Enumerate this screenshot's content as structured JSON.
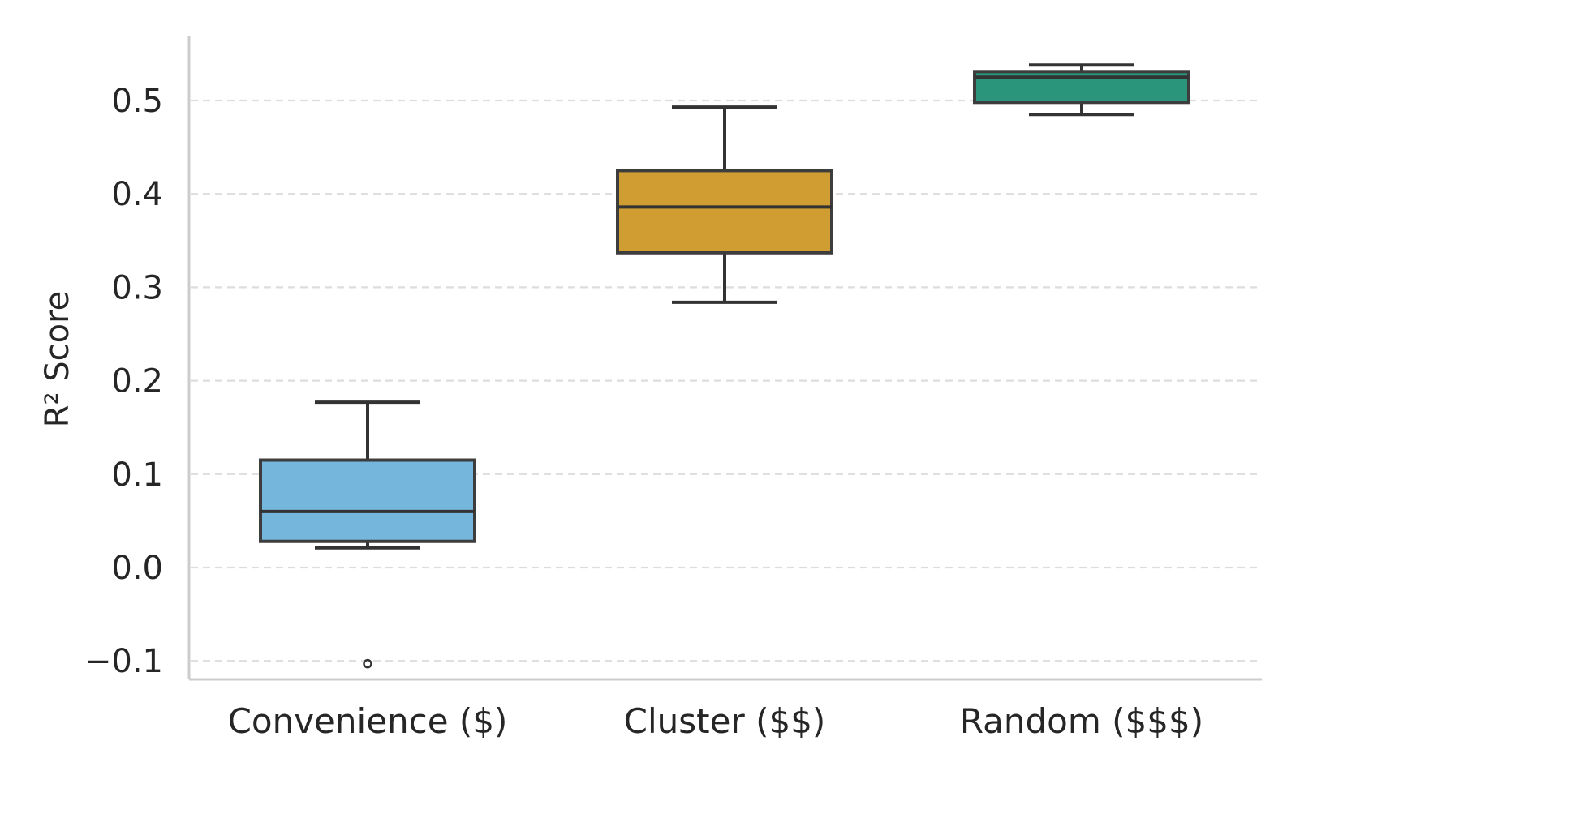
{
  "chart_data": {
    "type": "box",
    "ylabel": "R² Score",
    "ylim": [
      -0.12,
      0.58
    ],
    "yticks": [
      -0.1,
      0.0,
      0.1,
      0.2,
      0.3,
      0.4,
      0.5
    ],
    "ytick_labels": [
      "−0.1",
      "0.0",
      "0.1",
      "0.2",
      "0.3",
      "0.4",
      "0.5"
    ],
    "grid": "y-dashed",
    "categories": [
      "Convenience ($)",
      "Cluster ($$)",
      "Random ($$$)"
    ],
    "boxes": [
      {
        "category": "Convenience ($)",
        "whisker_low": 0.021,
        "q1": 0.028,
        "median": 0.06,
        "q3": 0.115,
        "whisker_high": 0.177,
        "outliers": [
          -0.103
        ],
        "color": "#74B6DC"
      },
      {
        "category": "Cluster ($$)",
        "whisker_low": 0.284,
        "q1": 0.337,
        "median": 0.386,
        "q3": 0.425,
        "whisker_high": 0.493,
        "outliers": [],
        "color": "#CF9D31"
      },
      {
        "category": "Random ($$$)",
        "whisker_low": 0.485,
        "q1": 0.498,
        "median": 0.525,
        "q3": 0.531,
        "whisker_high": 0.538,
        "outliers": [],
        "color": "#2A957A"
      }
    ],
    "colors": {
      "grid": "#dddddd",
      "axis": "#cccccc",
      "stroke": "#333333"
    }
  }
}
